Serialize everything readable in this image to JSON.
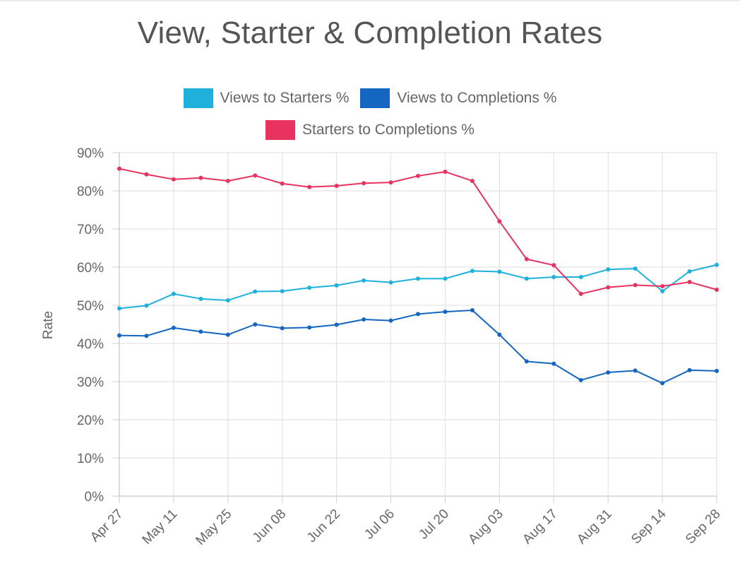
{
  "chart_data": {
    "type": "line",
    "title": "View, Starter & Completion Rates",
    "ylabel": "Rate",
    "xlabel": "",
    "ylim": [
      0,
      90
    ],
    "y_ticks": [
      "0%",
      "10%",
      "20%",
      "30%",
      "40%",
      "50%",
      "60%",
      "70%",
      "80%",
      "90%"
    ],
    "x_ticks": [
      "Apr 27",
      "May 11",
      "May 25",
      "Jun 08",
      "Jun 22",
      "Jul 06",
      "Jul 20",
      "Aug 03",
      "Aug 17",
      "Aug 31",
      "Sep 14",
      "Sep 28"
    ],
    "grid": true,
    "legend_position": "top",
    "series": [
      {
        "name": "Views to Starters %",
        "color": "#1fb1dc",
        "values": [
          49.2,
          49.9,
          53.0,
          51.7,
          51.3,
          53.6,
          53.7,
          54.6,
          55.2,
          56.5,
          56.0,
          57.0,
          57.0,
          59.0,
          58.8,
          57.0,
          57.4,
          57.4,
          59.4,
          59.6,
          53.7,
          58.9,
          60.6
        ]
      },
      {
        "name": "Views to Completions %",
        "color": "#1466c0",
        "values": [
          42.1,
          42.0,
          44.1,
          43.1,
          42.3,
          45.0,
          44.0,
          44.2,
          44.9,
          46.3,
          46.0,
          47.7,
          48.3,
          48.7,
          42.3,
          35.3,
          34.7,
          30.4,
          32.4,
          32.9,
          29.6,
          33.0,
          32.8
        ]
      },
      {
        "name": "Starters to Completions %",
        "color": "#e8325f",
        "values": [
          85.8,
          84.3,
          83.0,
          83.4,
          82.6,
          84.0,
          81.9,
          81.0,
          81.3,
          82.0,
          82.2,
          83.9,
          85.0,
          82.6,
          72.0,
          62.1,
          60.5,
          53.0,
          54.7,
          55.3,
          55.0,
          56.1,
          54.1
        ]
      }
    ]
  }
}
